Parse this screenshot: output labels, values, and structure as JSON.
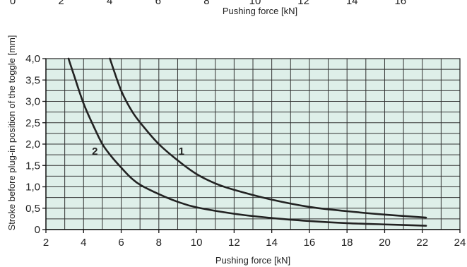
{
  "chart_data": [
    {
      "type": "line",
      "note": "cropped upper chart — only bottom tick labels and x-axis label visible",
      "x_ticks": [
        "0",
        "2",
        "4",
        "6",
        "8",
        "10",
        "12",
        "14",
        "16"
      ],
      "xlabel": "Pushing force [kN]"
    },
    {
      "type": "line",
      "title": "",
      "xlabel": "Pushing force [kN]",
      "ylabel": "Stroke before plug-in position of the toggle [mm]",
      "xlim": [
        2,
        24
      ],
      "ylim": [
        0,
        4.0
      ],
      "x_ticks": [
        "2",
        "4",
        "6",
        "8",
        "10",
        "12",
        "14",
        "16",
        "18",
        "20",
        "22",
        "24"
      ],
      "y_ticks": [
        "0",
        "0,5",
        "1,0",
        "1,5",
        "2,0",
        "2,5",
        "3,0",
        "3,5",
        "4,0"
      ],
      "grid": true,
      "background_color": "#deefe9",
      "grid_color": "#333333",
      "series": [
        {
          "name": "1",
          "color": "#222222",
          "x": [
            5.4,
            6.0,
            6.6,
            7.2,
            8.0,
            9.0,
            10.0,
            11.0,
            12.0,
            14.0,
            16.0,
            18.0,
            20.0,
            22.2
          ],
          "y": [
            4.0,
            3.25,
            2.75,
            2.4,
            2.0,
            1.62,
            1.3,
            1.08,
            0.93,
            0.7,
            0.53,
            0.43,
            0.35,
            0.28
          ]
        },
        {
          "name": "2",
          "color": "#222222",
          "x": [
            3.2,
            3.5,
            4.0,
            4.5,
            5.0,
            5.5,
            6.0,
            6.5,
            7.0,
            8.0,
            9.0,
            10.0,
            12.0,
            14.0,
            16.0,
            18.0,
            20.0,
            22.2
          ],
          "y": [
            4.0,
            3.6,
            2.95,
            2.45,
            2.0,
            1.7,
            1.45,
            1.22,
            1.05,
            0.83,
            0.65,
            0.52,
            0.37,
            0.27,
            0.2,
            0.15,
            0.12,
            0.09
          ]
        }
      ],
      "annotations": [
        {
          "text": "1",
          "x": 9.2,
          "y": 1.75
        },
        {
          "text": "2",
          "x": 4.6,
          "y": 1.75
        }
      ]
    }
  ]
}
